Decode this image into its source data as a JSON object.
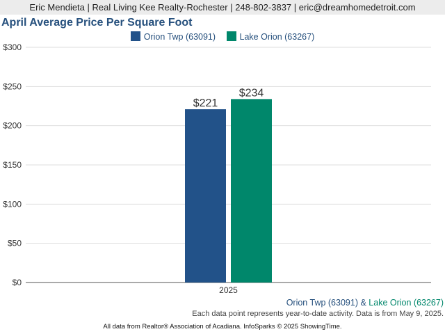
{
  "header": {
    "contact": "Eric Mendieta | Real Living Kee Realty-Rochester | 248-802-3837 | eric@dreamhomedetroit.com"
  },
  "chart_data": {
    "type": "bar",
    "title": "April Average Price Per Square Foot",
    "categories": [
      "2025"
    ],
    "series": [
      {
        "name": "Orion Twp (63091)",
        "values": [
          221
        ],
        "labels": [
          "$221"
        ],
        "color": "#225289"
      },
      {
        "name": "Lake Orion (63267)",
        "values": [
          234
        ],
        "labels": [
          "$234"
        ],
        "color": "#00876b"
      }
    ],
    "ylim": [
      0,
      300
    ],
    "yticks": [
      0,
      50,
      100,
      150,
      200,
      250,
      300
    ],
    "ytick_labels": [
      "$0",
      "$50",
      "$100",
      "$150",
      "$200",
      "$250",
      "$300"
    ],
    "grid": true,
    "legend_position": "top-center"
  },
  "footer": {
    "series_a": "Orion Twp (63091)",
    "connector": "&",
    "series_b": "Lake Orion (63267)",
    "note": "Each data point represents year-to-date activity. Data is from May 9, 2025.",
    "copyright": "All data from Realtor® Association of Acadiana. InfoSparks © 2025 ShowingTime."
  }
}
